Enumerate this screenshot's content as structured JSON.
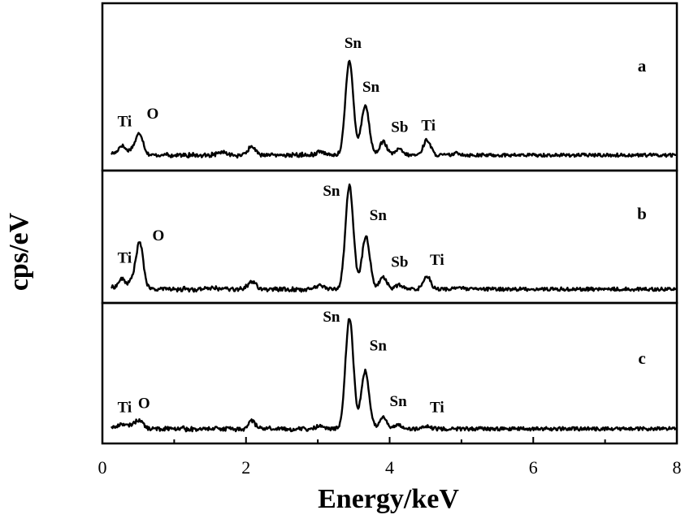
{
  "chart_data": {
    "type": "line",
    "xlabel": "Energy/keV",
    "ylabel": "cps/eV",
    "xlim": [
      0,
      8
    ],
    "x_ticks": [
      "0",
      "2",
      "4",
      "6",
      "8"
    ],
    "grid": false,
    "panels": [
      {
        "letter": "a",
        "peaks": [
          {
            "x": 0.27,
            "y": 0.1
          },
          {
            "x": 0.42,
            "y": 0.06
          },
          {
            "x": 0.52,
            "y": 0.22
          },
          {
            "x": 1.68,
            "y": 0.03
          },
          {
            "x": 2.08,
            "y": 0.09
          },
          {
            "x": 3.03,
            "y": 0.04
          },
          {
            "x": 3.44,
            "y": 0.98
          },
          {
            "x": 3.66,
            "y": 0.52
          },
          {
            "x": 3.91,
            "y": 0.14
          },
          {
            "x": 4.13,
            "y": 0.06
          },
          {
            "x": 4.52,
            "y": 0.16
          },
          {
            "x": 4.95,
            "y": 0.02
          }
        ],
        "labels": [
          {
            "text": "Ti",
            "x": 0.31,
            "y": 0.3
          },
          {
            "text": "O",
            "x": 0.7,
            "y": 0.38
          },
          {
            "text": "Sn",
            "x": 3.49,
            "y": 1.12
          },
          {
            "text": "Sn",
            "x": 3.74,
            "y": 0.66
          },
          {
            "text": "Sb",
            "x": 4.14,
            "y": 0.24
          },
          {
            "text": "Ti",
            "x": 4.54,
            "y": 0.26
          }
        ]
      },
      {
        "letter": "b",
        "peaks": [
          {
            "x": 0.27,
            "y": 0.1
          },
          {
            "x": 0.42,
            "y": 0.08
          },
          {
            "x": 0.52,
            "y": 0.45
          },
          {
            "x": 1.5,
            "y": 0.02
          },
          {
            "x": 2.08,
            "y": 0.08
          },
          {
            "x": 3.03,
            "y": 0.04
          },
          {
            "x": 3.44,
            "y": 1.02
          },
          {
            "x": 3.67,
            "y": 0.52
          },
          {
            "x": 3.91,
            "y": 0.12
          },
          {
            "x": 4.13,
            "y": 0.04
          },
          {
            "x": 4.52,
            "y": 0.13
          },
          {
            "x": 4.95,
            "y": 0.02
          }
        ],
        "labels": [
          {
            "text": "Ti",
            "x": 0.31,
            "y": 0.26
          },
          {
            "text": "O",
            "x": 0.78,
            "y": 0.48
          },
          {
            "text": "Sn",
            "x": 3.19,
            "y": 0.92
          },
          {
            "text": "Sn",
            "x": 3.84,
            "y": 0.68
          },
          {
            "text": "Sb",
            "x": 4.14,
            "y": 0.22
          },
          {
            "text": "Ti",
            "x": 4.66,
            "y": 0.24
          }
        ]
      },
      {
        "letter": "c",
        "peaks": [
          {
            "x": 0.27,
            "y": 0.05
          },
          {
            "x": 0.42,
            "y": 0.04
          },
          {
            "x": 0.52,
            "y": 0.08
          },
          {
            "x": 2.08,
            "y": 0.08
          },
          {
            "x": 3.03,
            "y": 0.03
          },
          {
            "x": 3.44,
            "y": 1.08
          },
          {
            "x": 3.66,
            "y": 0.56
          },
          {
            "x": 3.91,
            "y": 0.12
          },
          {
            "x": 4.13,
            "y": 0.04
          },
          {
            "x": 4.52,
            "y": 0.02
          }
        ],
        "labels": [
          {
            "text": "Ti",
            "x": 0.31,
            "y": 0.16
          },
          {
            "text": "O",
            "x": 0.58,
            "y": 0.2
          },
          {
            "text": "Sn",
            "x": 3.19,
            "y": 1.04
          },
          {
            "text": "Sn",
            "x": 3.84,
            "y": 0.76
          },
          {
            "text": "Sn",
            "x": 4.12,
            "y": 0.22
          },
          {
            "text": "Ti",
            "x": 4.66,
            "y": 0.16
          }
        ]
      }
    ]
  }
}
